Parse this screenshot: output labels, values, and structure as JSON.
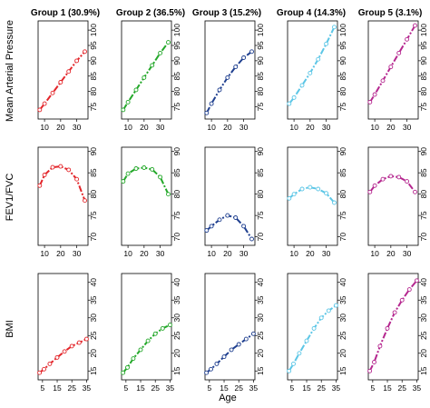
{
  "figure": {
    "x_axis_label": "Age",
    "groups": [
      {
        "title": "Group 1 (30.9%)",
        "color": "#e3262b"
      },
      {
        "title": "Group 2 (36.5%)",
        "color": "#24a82a"
      },
      {
        "title": "Group 3 (15.2%)",
        "color": "#1f3f8f"
      },
      {
        "title": "Group 4 (14.3%)",
        "color": "#5cc6e6"
      },
      {
        "title": "Group 5 (3.1%)",
        "color": "#b5278f"
      }
    ]
  },
  "chart_data": [
    {
      "type": "line",
      "ylabel": "Mean Arterial Pressure",
      "x_range": [
        6,
        37
      ],
      "ylim": [
        71,
        103
      ],
      "yticks": [
        75,
        80,
        85,
        90,
        95,
        100
      ],
      "xticks": [
        10,
        20,
        30
      ],
      "series": [
        {
          "group": 1,
          "points": [
            [
              7,
              74
            ],
            [
              10,
              76
            ],
            [
              15,
              79.5
            ],
            [
              20,
              83
            ],
            [
              25,
              86.5
            ],
            [
              30,
              90
            ],
            [
              35,
              93
            ]
          ]
        },
        {
          "group": 2,
          "points": [
            [
              7,
              74
            ],
            [
              10,
              76.5
            ],
            [
              15,
              80.5
            ],
            [
              20,
              84.5
            ],
            [
              25,
              88.5
            ],
            [
              30,
              92.5
            ],
            [
              35,
              96
            ]
          ]
        },
        {
          "group": 3,
          "points": [
            [
              7,
              73
            ],
            [
              10,
              76
            ],
            [
              15,
              80.5
            ],
            [
              20,
              84.5
            ],
            [
              25,
              88
            ],
            [
              30,
              91
            ],
            [
              35,
              93
            ]
          ]
        },
        {
          "group": 4,
          "points": [
            [
              7,
              76
            ],
            [
              10,
              78
            ],
            [
              15,
              82
            ],
            [
              20,
              86
            ],
            [
              25,
              90.5
            ],
            [
              30,
              95.5
            ],
            [
              35,
              101
            ]
          ]
        },
        {
          "group": 5,
          "points": [
            [
              7,
              76.5
            ],
            [
              10,
              79
            ],
            [
              15,
              83.5
            ],
            [
              20,
              88
            ],
            [
              25,
              92.5
            ],
            [
              30,
              97
            ],
            [
              35,
              101.5
            ]
          ]
        }
      ]
    },
    {
      "type": "line",
      "ylabel": "FEV1/FVC",
      "x_range": [
        6,
        37
      ],
      "ylim": [
        68,
        91
      ],
      "yticks": [
        70,
        75,
        80,
        85,
        90
      ],
      "xticks": [
        10,
        20,
        30
      ],
      "series": [
        {
          "group": 1,
          "points": [
            [
              7,
              82
            ],
            [
              10,
              84.5
            ],
            [
              15,
              86.3
            ],
            [
              20,
              86.5
            ],
            [
              25,
              85.7
            ],
            [
              30,
              83.5
            ],
            [
              35,
              78.5
            ]
          ]
        },
        {
          "group": 2,
          "points": [
            [
              7,
              83
            ],
            [
              10,
              84.8
            ],
            [
              15,
              86
            ],
            [
              20,
              86.2
            ],
            [
              25,
              85.8
            ],
            [
              30,
              84
            ],
            [
              35,
              80
            ]
          ]
        },
        {
          "group": 3,
          "points": [
            [
              7,
              71.5
            ],
            [
              10,
              72.5
            ],
            [
              15,
              74
            ],
            [
              20,
              75
            ],
            [
              25,
              74.5
            ],
            [
              30,
              72.5
            ],
            [
              35,
              69.5
            ]
          ]
        },
        {
          "group": 4,
          "points": [
            [
              7,
              79
            ],
            [
              10,
              80
            ],
            [
              15,
              81.2
            ],
            [
              20,
              81.6
            ],
            [
              25,
              81.2
            ],
            [
              30,
              80.2
            ],
            [
              35,
              78
            ]
          ]
        },
        {
          "group": 5,
          "points": [
            [
              7,
              80.5
            ],
            [
              10,
              82
            ],
            [
              15,
              83.5
            ],
            [
              20,
              84.2
            ],
            [
              25,
              84
            ],
            [
              30,
              83
            ],
            [
              35,
              80.5
            ]
          ]
        }
      ]
    },
    {
      "type": "line",
      "ylabel": "BMI",
      "x_range": [
        2,
        36
      ],
      "ylim": [
        12.5,
        42.5
      ],
      "yticks": [
        15,
        20,
        25,
        30,
        35,
        40
      ],
      "xticks": [
        5,
        15,
        25,
        35
      ],
      "series": [
        {
          "group": 1,
          "points": [
            [
              3,
              14.5
            ],
            [
              6,
              15.5
            ],
            [
              10,
              17
            ],
            [
              15,
              18.8
            ],
            [
              20,
              20.5
            ],
            [
              25,
              22
            ],
            [
              30,
              23
            ],
            [
              35,
              24
            ]
          ]
        },
        {
          "group": 2,
          "points": [
            [
              3,
              14.5
            ],
            [
              6,
              16
            ],
            [
              10,
              18.5
            ],
            [
              15,
              21
            ],
            [
              20,
              23.5
            ],
            [
              25,
              25.5
            ],
            [
              30,
              27
            ],
            [
              35,
              28
            ]
          ]
        },
        {
          "group": 3,
          "points": [
            [
              3,
              14.5
            ],
            [
              6,
              15.5
            ],
            [
              10,
              17
            ],
            [
              15,
              19
            ],
            [
              20,
              21
            ],
            [
              25,
              22.5
            ],
            [
              30,
              24
            ],
            [
              35,
              25.5
            ]
          ]
        },
        {
          "group": 4,
          "points": [
            [
              3,
              15
            ],
            [
              6,
              17
            ],
            [
              10,
              20
            ],
            [
              15,
              23.5
            ],
            [
              20,
              27
            ],
            [
              25,
              30
            ],
            [
              30,
              32
            ],
            [
              35,
              33.5
            ]
          ]
        },
        {
          "group": 5,
          "points": [
            [
              3,
              15
            ],
            [
              6,
              17.5
            ],
            [
              10,
              22
            ],
            [
              15,
              27
            ],
            [
              20,
              31.5
            ],
            [
              25,
              35
            ],
            [
              30,
              38
            ],
            [
              35,
              40.5
            ]
          ]
        }
      ]
    }
  ]
}
